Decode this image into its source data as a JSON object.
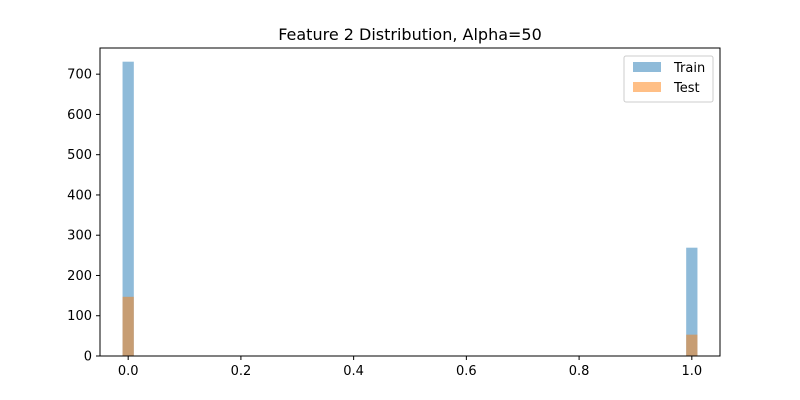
{
  "chart_data": {
    "type": "bar",
    "title": "Feature 2 Distribution, Alpha=50",
    "xlabel": "",
    "ylabel": "",
    "xlim": [
      -0.05,
      1.05
    ],
    "ylim": [
      0,
      765
    ],
    "xticks": [
      "0.0",
      "0.2",
      "0.4",
      "0.6",
      "0.8",
      "1.0"
    ],
    "yticks": [
      "0",
      "100",
      "200",
      "300",
      "400",
      "500",
      "600",
      "700"
    ],
    "bin_width": 0.02,
    "series": [
      {
        "name": "Train",
        "color": "#1f77b4",
        "alpha": 0.5,
        "bins": [
          {
            "x0": -0.01,
            "x1": 0.01,
            "value": 731
          },
          {
            "x0": 0.99,
            "x1": 1.01,
            "value": 269
          }
        ]
      },
      {
        "name": "Test",
        "color": "#ff7f0e",
        "alpha": 0.5,
        "bins": [
          {
            "x0": -0.01,
            "x1": 0.01,
            "value": 147
          },
          {
            "x0": 0.99,
            "x1": 1.01,
            "value": 53
          }
        ]
      }
    ],
    "legend_position": "top-right",
    "grid": false
  }
}
